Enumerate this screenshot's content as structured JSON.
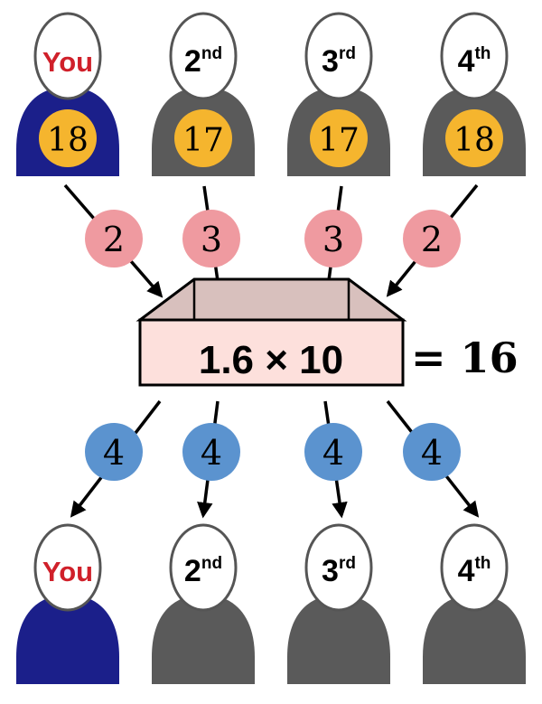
{
  "diagram": {
    "top_players": [
      {
        "label": "You",
        "sup": "",
        "tokens": "18",
        "body_color": "#1b1f8a",
        "label_color": "#d0202a"
      },
      {
        "label": "2",
        "sup": "nd",
        "tokens": "17",
        "body_color": "#5a5a5a",
        "label_color": "#000000"
      },
      {
        "label": "3",
        "sup": "rd",
        "tokens": "17",
        "body_color": "#5a5a5a",
        "label_color": "#000000"
      },
      {
        "label": "4",
        "sup": "th",
        "tokens": "18",
        "body_color": "#5a5a5a",
        "label_color": "#000000"
      }
    ],
    "contributions": [
      "2",
      "3",
      "3",
      "2"
    ],
    "box": {
      "expression": "1.6 × 10",
      "result": "= 16"
    },
    "payouts": [
      "4",
      "4",
      "4",
      "4"
    ],
    "bottom_players": [
      {
        "label": "You",
        "sup": "",
        "body_color": "#1b1f8a",
        "label_color": "#d0202a"
      },
      {
        "label": "2",
        "sup": "nd",
        "body_color": "#5a5a5a",
        "label_color": "#000000"
      },
      {
        "label": "3",
        "sup": "rd",
        "body_color": "#5a5a5a",
        "label_color": "#000000"
      },
      {
        "label": "4",
        "sup": "th",
        "body_color": "#5a5a5a",
        "label_color": "#000000"
      }
    ],
    "colors": {
      "token": "#f5b52e",
      "contribution": "#ef9aa0",
      "payout": "#5b93cf",
      "box_front": "#fde0dc",
      "box_top": "#d8c0bd"
    }
  }
}
